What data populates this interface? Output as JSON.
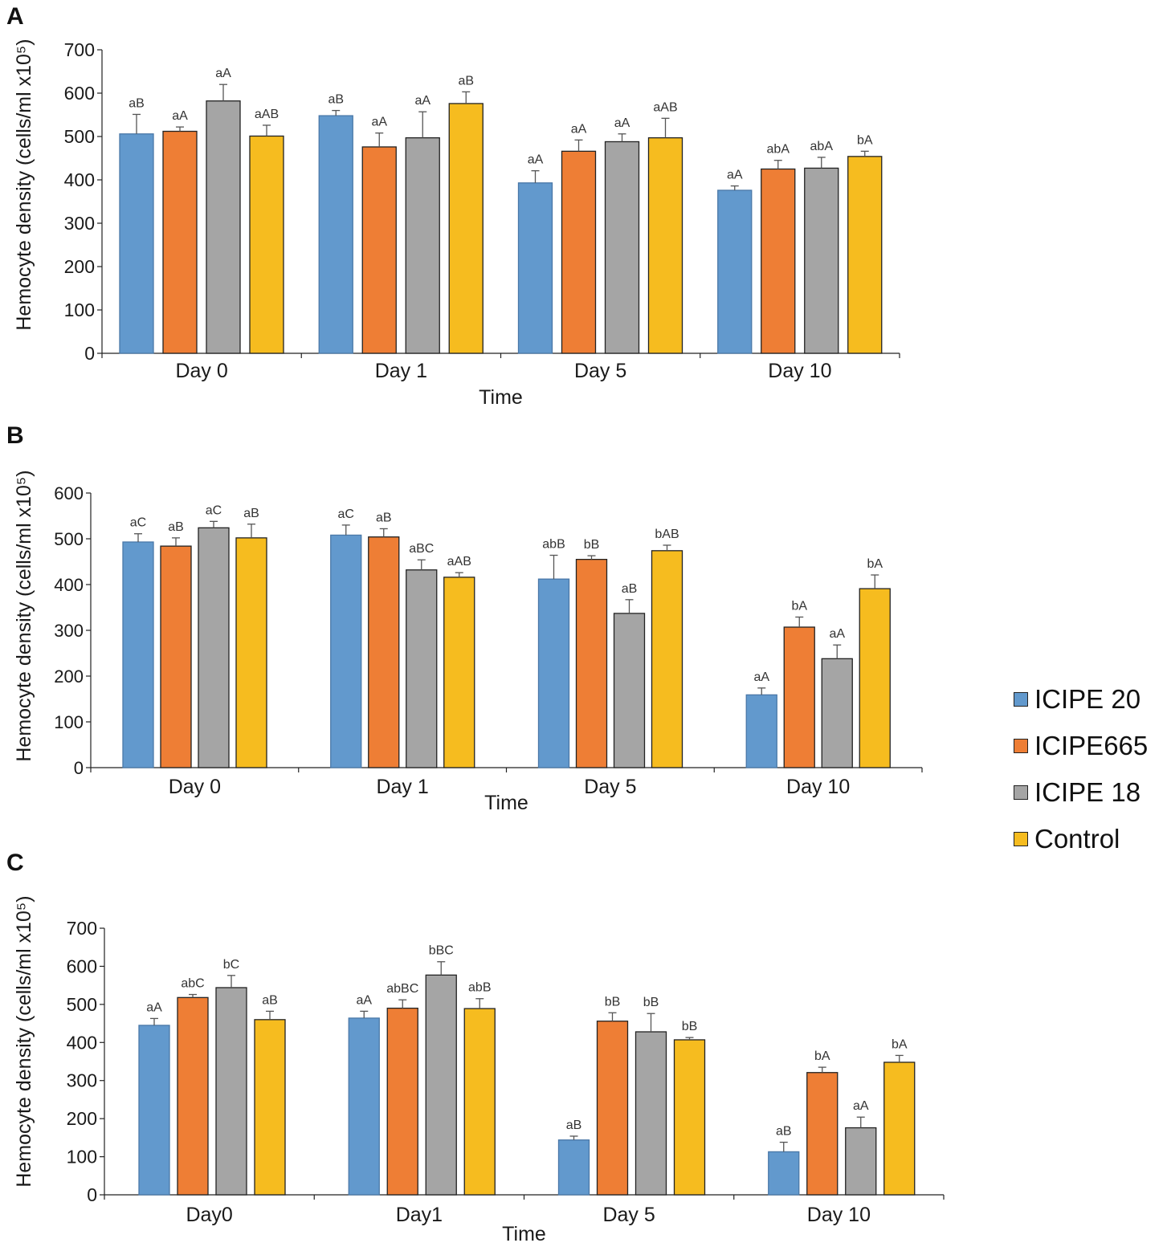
{
  "legend": {
    "items": [
      {
        "label": "ICIPE 20",
        "color": "#6299cd"
      },
      {
        "label": "ICIPE665",
        "color": "#ee7e35"
      },
      {
        "label": "ICIPE 18",
        "color": "#a5a5a5"
      },
      {
        "label": "Control",
        "color": "#f6bc1f"
      }
    ]
  },
  "chart_data": [
    {
      "panel": "A",
      "type": "bar",
      "xlabel": "Time",
      "ylabel": "Hemocyte density (cells/ml x10⁵)",
      "ylim": [
        0,
        700
      ],
      "yticks": [
        0,
        100,
        200,
        300,
        400,
        500,
        600,
        700
      ],
      "categories": [
        "Day 0",
        "Day 1",
        "Day 5",
        "Day 10"
      ],
      "series": [
        {
          "name": "ICIPE 20",
          "values": [
            506,
            548,
            393,
            376
          ],
          "errors": [
            45,
            12,
            28,
            10
          ],
          "labels": [
            "aB",
            "aB",
            "aA",
            "aA"
          ]
        },
        {
          "name": "ICIPE665",
          "values": [
            512,
            476,
            466,
            425
          ],
          "errors": [
            10,
            32,
            26,
            20
          ],
          "labels": [
            "aA",
            "aA",
            "aA",
            "abA"
          ]
        },
        {
          "name": "ICIPE 18",
          "values": [
            582,
            497,
            488,
            427
          ],
          "errors": [
            38,
            60,
            18,
            25
          ],
          "labels": [
            "aA",
            "aA",
            "aA",
            "abA"
          ]
        },
        {
          "name": "Control",
          "values": [
            501,
            576,
            497,
            454
          ],
          "errors": [
            25,
            27,
            45,
            12
          ],
          "labels": [
            "aAB",
            "aB",
            "aAB",
            "bA"
          ]
        }
      ]
    },
    {
      "panel": "B",
      "type": "bar",
      "xlabel": "Time",
      "ylabel": "Hemocyte density (cells/ml x10⁵)",
      "ylim": [
        0,
        600
      ],
      "yticks": [
        0,
        100,
        200,
        300,
        400,
        500,
        600
      ],
      "categories": [
        "Day 0",
        "Day 1",
        "Day 5",
        "Day 10"
      ],
      "series": [
        {
          "name": "ICIPE 20",
          "values": [
            493,
            508,
            412,
            159
          ],
          "errors": [
            18,
            22,
            52,
            15
          ],
          "labels": [
            "aC",
            "aC",
            "abB",
            "aA"
          ]
        },
        {
          "name": "ICIPE665",
          "values": [
            484,
            504,
            455,
            307
          ],
          "errors": [
            18,
            18,
            8,
            22
          ],
          "labels": [
            "aB",
            "aB",
            "bB",
            "bA"
          ]
        },
        {
          "name": "ICIPE 18",
          "values": [
            524,
            432,
            337,
            238
          ],
          "errors": [
            14,
            22,
            30,
            30
          ],
          "labels": [
            "aC",
            "aBC",
            "aB",
            "aA"
          ]
        },
        {
          "name": "Control",
          "values": [
            502,
            416,
            474,
            391
          ],
          "errors": [
            30,
            10,
            12,
            30
          ],
          "labels": [
            "aB",
            "aAB",
            "bAB",
            "bA"
          ]
        }
      ]
    },
    {
      "panel": "C",
      "type": "bar",
      "xlabel": "Time",
      "ylabel": "Hemocyte density (cells/ml x10⁵)",
      "ylim": [
        0,
        700
      ],
      "yticks": [
        0,
        100,
        200,
        300,
        400,
        500,
        600,
        700
      ],
      "categories": [
        "Day0",
        "Day1",
        "Day 5",
        "Day 10"
      ],
      "series": [
        {
          "name": "ICIPE 20",
          "values": [
            445,
            464,
            144,
            113
          ],
          "errors": [
            18,
            18,
            10,
            25
          ],
          "labels": [
            "aA",
            "aA",
            "aB",
            "aB"
          ]
        },
        {
          "name": "ICIPE665",
          "values": [
            518,
            490,
            456,
            321
          ],
          "errors": [
            8,
            22,
            22,
            14
          ],
          "labels": [
            "abC",
            "abBC",
            "bB",
            "bA"
          ]
        },
        {
          "name": "ICIPE 18",
          "values": [
            544,
            577,
            428,
            176
          ],
          "errors": [
            32,
            35,
            48,
            28
          ],
          "labels": [
            "bC",
            "bBC",
            "bB",
            "aA"
          ]
        },
        {
          "name": "Control",
          "values": [
            460,
            489,
            407,
            348
          ],
          "errors": [
            22,
            26,
            6,
            18
          ],
          "labels": [
            "aB",
            "abB",
            "bB",
            "bA"
          ]
        }
      ]
    }
  ]
}
